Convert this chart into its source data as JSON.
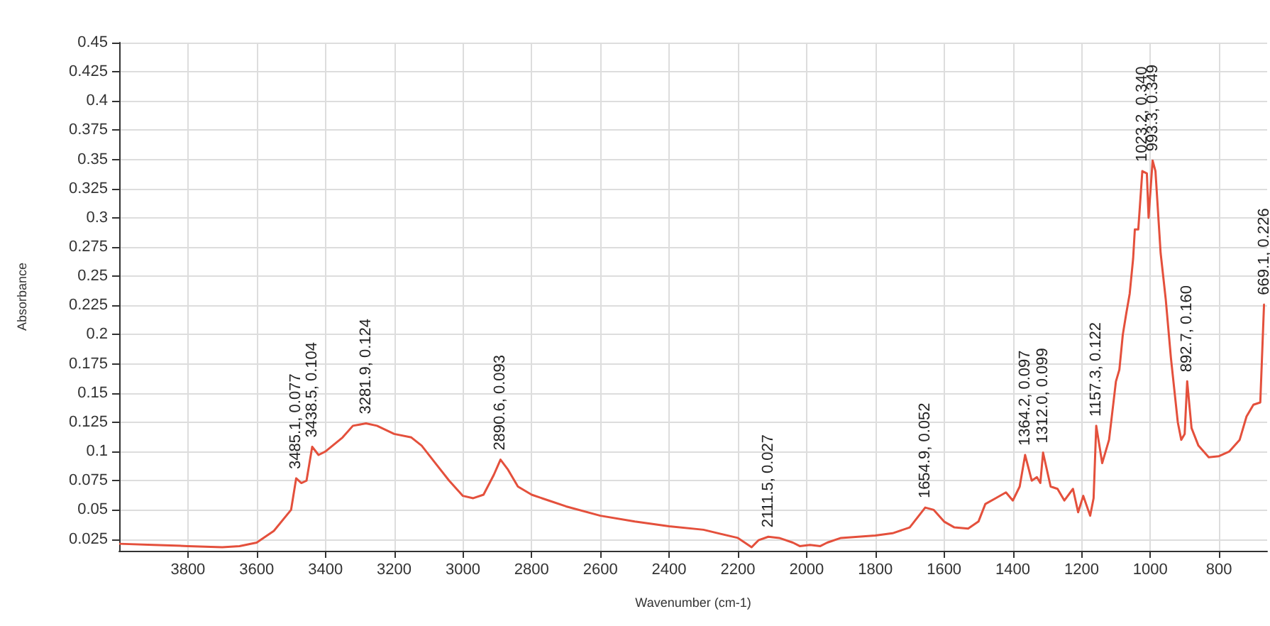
{
  "chart_data": {
    "type": "line",
    "xlabel": "Wavenumber (cm-1)",
    "ylabel": "Absorbance",
    "xlim": [
      4000,
      660
    ],
    "ylim": [
      0.015,
      0.45
    ],
    "xticks": [
      3800,
      3600,
      3400,
      3200,
      3000,
      2800,
      2600,
      2400,
      2200,
      2000,
      1800,
      1600,
      1400,
      1200,
      1000,
      800
    ],
    "yticks": [
      0.025,
      0.05,
      0.075,
      0.1,
      0.125,
      0.15,
      0.175,
      0.2,
      0.225,
      0.25,
      0.275,
      0.3,
      0.325,
      0.35,
      0.375,
      0.4,
      0.425,
      0.45
    ],
    "grid": true,
    "marker": "none",
    "series": [
      {
        "color": "#e4503c",
        "x": [
          4000,
          3900,
          3800,
          3700,
          3650,
          3600,
          3550,
          3500,
          3485.1,
          3470,
          3455,
          3438.5,
          3420,
          3400,
          3350,
          3320,
          3281.9,
          3250,
          3200,
          3150,
          3120,
          3080,
          3040,
          3000,
          2970,
          2940,
          2910,
          2890.6,
          2870,
          2840,
          2800,
          2750,
          2700,
          2600,
          2500,
          2400,
          2300,
          2200,
          2160,
          2140,
          2111.5,
          2080,
          2040,
          2020,
          1990,
          1960,
          1940,
          1900,
          1850,
          1800,
          1750,
          1700,
          1654.9,
          1630,
          1600,
          1570,
          1530,
          1500,
          1480,
          1450,
          1420,
          1400,
          1380,
          1364.2,
          1345,
          1330,
          1320,
          1312.0,
          1290,
          1270,
          1250,
          1225,
          1210,
          1195,
          1175,
          1165,
          1157.3,
          1140,
          1120,
          1100,
          1090,
          1080,
          1070,
          1060,
          1050,
          1045,
          1035,
          1023.2,
          1010,
          1005,
          993.3,
          985,
          970,
          955,
          940,
          920,
          910,
          900,
          892.7,
          880,
          860,
          830,
          800,
          770,
          740,
          720,
          700,
          680,
          669.1
        ],
        "values": [
          0.021,
          0.02,
          0.019,
          0.018,
          0.019,
          0.022,
          0.032,
          0.05,
          0.077,
          0.073,
          0.075,
          0.104,
          0.097,
          0.1,
          0.112,
          0.122,
          0.124,
          0.122,
          0.115,
          0.112,
          0.105,
          0.09,
          0.075,
          0.062,
          0.06,
          0.063,
          0.08,
          0.093,
          0.085,
          0.07,
          0.063,
          0.058,
          0.053,
          0.045,
          0.04,
          0.036,
          0.033,
          0.026,
          0.018,
          0.024,
          0.027,
          0.026,
          0.022,
          0.019,
          0.02,
          0.019,
          0.022,
          0.026,
          0.027,
          0.028,
          0.03,
          0.035,
          0.052,
          0.05,
          0.04,
          0.035,
          0.034,
          0.04,
          0.055,
          0.06,
          0.065,
          0.058,
          0.07,
          0.097,
          0.075,
          0.078,
          0.073,
          0.099,
          0.07,
          0.068,
          0.058,
          0.068,
          0.048,
          0.062,
          0.045,
          0.06,
          0.122,
          0.09,
          0.11,
          0.16,
          0.17,
          0.2,
          0.218,
          0.235,
          0.265,
          0.29,
          0.29,
          0.34,
          0.338,
          0.3,
          0.349,
          0.34,
          0.27,
          0.23,
          0.18,
          0.125,
          0.11,
          0.115,
          0.16,
          0.12,
          0.105,
          0.095,
          0.096,
          0.1,
          0.11,
          0.13,
          0.14,
          0.142,
          0.226
        ]
      }
    ],
    "annotations": [
      {
        "text": "3485.1, 0.077",
        "x": 3485.1,
        "y": 0.077
      },
      {
        "text": "3438.5, 0.104",
        "x": 3438.5,
        "y": 0.104
      },
      {
        "text": "3281.9, 0.124",
        "x": 3281.9,
        "y": 0.124
      },
      {
        "text": "2890.6, 0.093",
        "x": 2890.6,
        "y": 0.093
      },
      {
        "text": "2111.5, 0.027",
        "x": 2111.5,
        "y": 0.027
      },
      {
        "text": "1654.9, 0.052",
        "x": 1654.9,
        "y": 0.052
      },
      {
        "text": "1364.2, 0.097",
        "x": 1364.2,
        "y": 0.097
      },
      {
        "text": "1312.0, 0.099",
        "x": 1312.0,
        "y": 0.099
      },
      {
        "text": "1157.3, 0.122",
        "x": 1157.3,
        "y": 0.122
      },
      {
        "text": "1023.2, 0.340",
        "x": 1023.2,
        "y": 0.34
      },
      {
        "text": "993.3, 0.349",
        "x": 993.3,
        "y": 0.349
      },
      {
        "text": "892.7, 0.160",
        "x": 892.7,
        "y": 0.16
      },
      {
        "text": "669.1, 0.226",
        "x": 669.1,
        "y": 0.226
      }
    ]
  }
}
